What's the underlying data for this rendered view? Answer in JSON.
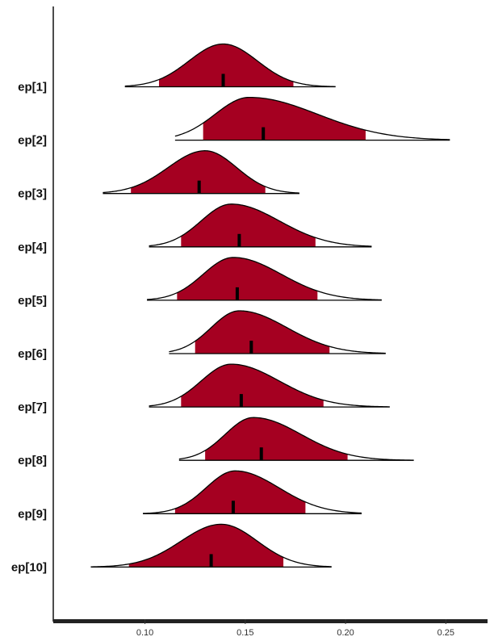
{
  "chart_data": {
    "type": "area",
    "title": "",
    "xlabel": "",
    "ylabel": "",
    "xlim": [
      0.055,
      0.27
    ],
    "x_ticks": [
      0.1,
      0.15,
      0.2,
      0.25
    ],
    "x_tick_labels": [
      "0.10",
      "0.15",
      "0.20",
      "0.25"
    ],
    "grid": false,
    "legend": "none",
    "fill_color": "#a50021",
    "line_color": "#000000",
    "series": [
      {
        "label": "ep[1]",
        "min": 0.09,
        "max": 0.195,
        "inner_low": 0.107,
        "inner_high": 0.174,
        "point": 0.139,
        "mode": 0.139,
        "spread": 0.017,
        "skew": 1.0
      },
      {
        "label": "ep[2]",
        "min": 0.115,
        "max": 0.252,
        "inner_low": 0.129,
        "inner_high": 0.21,
        "point": 0.159,
        "mode": 0.152,
        "spread": 0.017,
        "skew": 2.0
      },
      {
        "label": "ep[3]",
        "min": 0.079,
        "max": 0.177,
        "inner_low": 0.093,
        "inner_high": 0.16,
        "point": 0.127,
        "mode": 0.13,
        "spread": 0.0185,
        "skew": 0.85
      },
      {
        "label": "ep[4]",
        "min": 0.102,
        "max": 0.213,
        "inner_low": 0.118,
        "inner_high": 0.185,
        "point": 0.147,
        "mode": 0.143,
        "spread": 0.015,
        "skew": 1.6
      },
      {
        "label": "ep[5]",
        "min": 0.101,
        "max": 0.218,
        "inner_low": 0.116,
        "inner_high": 0.186,
        "point": 0.146,
        "mode": 0.144,
        "spread": 0.015,
        "skew": 1.6
      },
      {
        "label": "ep[6]",
        "min": 0.112,
        "max": 0.22,
        "inner_low": 0.125,
        "inner_high": 0.192,
        "point": 0.153,
        "mode": 0.147,
        "spread": 0.014,
        "skew": 1.7
      },
      {
        "label": "ep[7]",
        "min": 0.102,
        "max": 0.222,
        "inner_low": 0.118,
        "inner_high": 0.189,
        "point": 0.148,
        "mode": 0.143,
        "spread": 0.015,
        "skew": 1.6
      },
      {
        "label": "ep[8]",
        "min": 0.117,
        "max": 0.234,
        "inner_low": 0.13,
        "inner_high": 0.201,
        "point": 0.158,
        "mode": 0.154,
        "spread": 0.014,
        "skew": 1.7
      },
      {
        "label": "ep[9]",
        "min": 0.099,
        "max": 0.208,
        "inner_low": 0.115,
        "inner_high": 0.18,
        "point": 0.144,
        "mode": 0.145,
        "spread": 0.0145,
        "skew": 1.5
      },
      {
        "label": "ep[10]",
        "min": 0.073,
        "max": 0.193,
        "inner_low": 0.092,
        "inner_high": 0.169,
        "point": 0.133,
        "mode": 0.138,
        "spread": 0.02,
        "skew": 0.9
      }
    ]
  }
}
